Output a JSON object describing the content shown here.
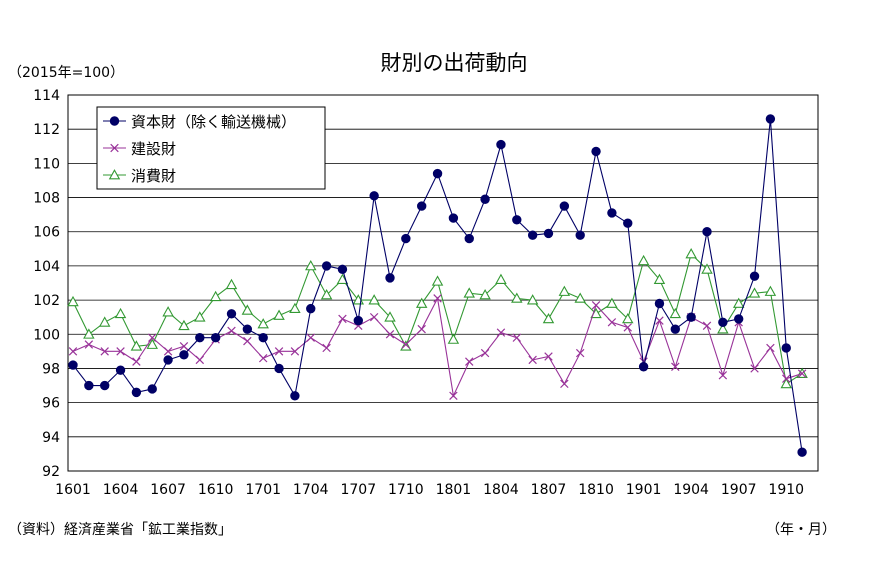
{
  "chart_data": {
    "type": "line",
    "title": "財別の出荷動向",
    "unit_label": "（2015年=100）",
    "source_note": "（資料）経済産業省「鉱工業指数」",
    "x_unit_label": "（年・月）",
    "ylim": [
      92,
      114
    ],
    "yticks": [
      "114",
      "112",
      "110",
      "108",
      "106",
      "104",
      "102",
      "100",
      "98",
      "96",
      "94",
      "92"
    ],
    "x": [
      "1601",
      "1602",
      "1603",
      "1604",
      "1605",
      "1606",
      "1607",
      "1608",
      "1609",
      "1610",
      "1611",
      "1612",
      "1701",
      "1702",
      "1703",
      "1704",
      "1705",
      "1706",
      "1707",
      "1708",
      "1709",
      "1710",
      "1711",
      "1712",
      "1801",
      "1802",
      "1803",
      "1804",
      "1805",
      "1806",
      "1807",
      "1808",
      "1809",
      "1810",
      "1811",
      "1812",
      "1901",
      "1902",
      "1903",
      "1904",
      "1905",
      "1906",
      "1907",
      "1908",
      "1909",
      "1910",
      "1911"
    ],
    "xtick_labels": [
      "1601",
      "1604",
      "1607",
      "1610",
      "1701",
      "1704",
      "1707",
      "1710",
      "1801",
      "1804",
      "1807",
      "1810",
      "1901",
      "1904",
      "1907",
      "1910"
    ],
    "grid": "horizontal",
    "legend_placement": "top-left",
    "series": [
      {
        "name": "資本財（除く輸送機械）",
        "color": "#000066",
        "marker": "filled-circle",
        "values": [
          98.2,
          97.0,
          97.0,
          97.9,
          96.6,
          96.8,
          98.5,
          98.8,
          99.8,
          99.8,
          101.2,
          100.3,
          99.8,
          98.0,
          96.4,
          101.5,
          104.0,
          103.8,
          100.8,
          108.1,
          103.3,
          105.6,
          107.5,
          109.4,
          106.8,
          105.6,
          107.9,
          111.1,
          106.7,
          105.8,
          105.9,
          107.5,
          105.8,
          110.7,
          107.1,
          106.5,
          98.1,
          101.8,
          100.3,
          101.0,
          106.0,
          100.7,
          100.9,
          103.4,
          112.6,
          99.2,
          93.1
        ]
      },
      {
        "name": "建設財",
        "color": "#993399",
        "marker": "x",
        "values": [
          99.0,
          99.4,
          99.0,
          99.0,
          98.4,
          99.8,
          99.0,
          99.3,
          98.5,
          99.7,
          100.2,
          99.6,
          98.6,
          99.0,
          99.0,
          99.8,
          99.2,
          100.9,
          100.5,
          101.0,
          100.0,
          99.4,
          100.3,
          102.1,
          96.4,
          98.4,
          98.9,
          100.1,
          99.8,
          98.5,
          98.7,
          97.1,
          98.9,
          101.7,
          100.7,
          100.4,
          98.4,
          100.8,
          98.1,
          101.0,
          100.5,
          97.6,
          100.7,
          98.0,
          99.2,
          97.4,
          97.7
        ]
      },
      {
        "name": "消費財",
        "color": "#339933",
        "marker": "open-triangle",
        "values": [
          101.9,
          100.0,
          100.7,
          101.2,
          99.3,
          99.4,
          101.3,
          100.5,
          101.0,
          102.2,
          102.9,
          101.4,
          100.6,
          101.1,
          101.5,
          104.0,
          102.3,
          103.2,
          102.0,
          102.0,
          101.0,
          99.3,
          101.8,
          103.1,
          99.7,
          102.4,
          102.3,
          103.2,
          102.1,
          102.0,
          100.9,
          102.5,
          102.1,
          101.2,
          101.8,
          100.9,
          104.3,
          103.2,
          101.2,
          104.7,
          103.8,
          100.3,
          101.8,
          102.4,
          102.5,
          97.1,
          97.7
        ]
      }
    ]
  }
}
